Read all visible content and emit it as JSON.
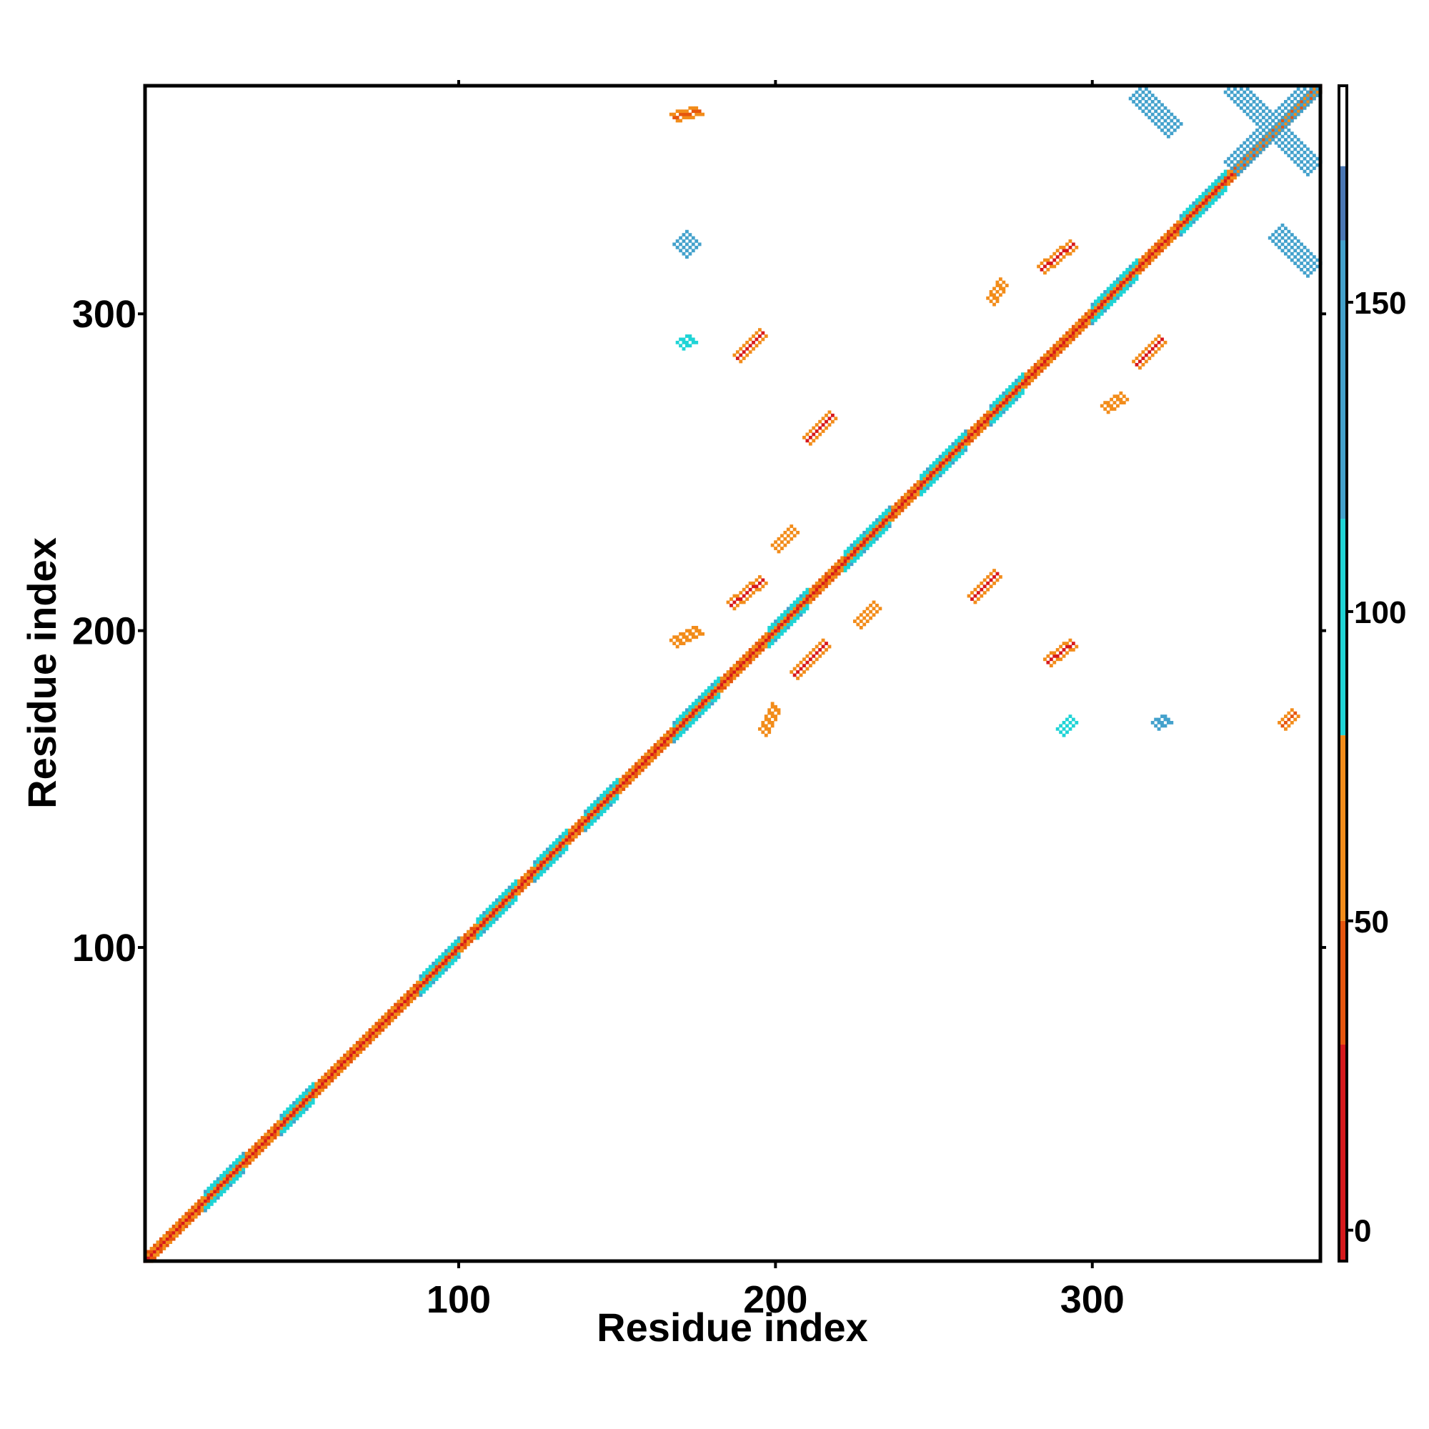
{
  "chart_data": {
    "type": "heatmap",
    "title": "",
    "xlabel": "Residue index",
    "ylabel": "Residue index",
    "xlim": [
      1,
      372
    ],
    "ylim": [
      1,
      372
    ],
    "x_ticks": [
      100,
      200,
      300
    ],
    "y_ticks": [
      100,
      200,
      300
    ],
    "x_tick_labels": [
      "100",
      "200",
      "300"
    ],
    "y_tick_labels": [
      "100",
      "200",
      "300"
    ],
    "grid": false,
    "legend": "colorbar-right",
    "colorbar": {
      "range": [
        -5,
        185
      ],
      "ticks": [
        0,
        50,
        100,
        150
      ],
      "tick_labels": [
        "0",
        "50",
        "100",
        "150"
      ],
      "bands": [
        {
          "from": -5,
          "to": 30,
          "color": "#d7191c"
        },
        {
          "from": 30,
          "to": 50,
          "color": "#e6550d"
        },
        {
          "from": 50,
          "to": 80,
          "color": "#f28c1a"
        },
        {
          "from": 80,
          "to": 115,
          "color": "#1fd4d6"
        },
        {
          "from": 115,
          "to": 160,
          "color": "#43a1cc"
        },
        {
          "from": 160,
          "to": 172,
          "color": "#4a77b4"
        },
        {
          "from": 172,
          "to": 185,
          "color": "#ffffff"
        }
      ]
    },
    "diagonal": {
      "from": 1,
      "to": 372
    },
    "helix_segments": [
      [
        20,
        32
      ],
      [
        44,
        54
      ],
      [
        88,
        100
      ],
      [
        106,
        118
      ],
      [
        124,
        134
      ],
      [
        140,
        150
      ],
      [
        168,
        182
      ],
      [
        198,
        210
      ],
      [
        222,
        236
      ],
      [
        246,
        260
      ],
      [
        268,
        278
      ],
      [
        300,
        314
      ],
      [
        328,
        342
      ]
    ],
    "off_diagonal_blocks": [
      {
        "x": [
          188,
          196
        ],
        "y": [
          286,
          294
        ],
        "value": 10
      },
      {
        "x": [
          210,
          218
        ],
        "y": [
          260,
          268
        ],
        "value": 10
      },
      {
        "x": [
          186,
          196
        ],
        "y": [
          208,
          216
        ],
        "value": 10
      },
      {
        "x": [
          206,
          216
        ],
        "y": [
          186,
          196
        ],
        "value": 10
      },
      {
        "x": [
          262,
          270
        ],
        "y": [
          210,
          218
        ],
        "value": 10
      },
      {
        "x": [
          286,
          294
        ],
        "y": [
          190,
          196
        ],
        "value": 10
      },
      {
        "x": [
          284,
          294
        ],
        "y": [
          314,
          322
        ],
        "value": 10
      },
      {
        "x": [
          314,
          322
        ],
        "y": [
          284,
          292
        ],
        "value": 10
      },
      {
        "x": [
          314,
          326
        ],
        "y": [
          358,
          370
        ],
        "value": 150
      },
      {
        "x": [
          344,
          370
        ],
        "y": [
          346,
          372
        ],
        "value": 150
      },
      {
        "x": [
          358,
          370
        ],
        "y": [
          314,
          326
        ],
        "value": 150
      },
      {
        "x": [
          170,
          174
        ],
        "y": [
          320,
          324
        ],
        "value": 150
      },
      {
        "x": [
          168,
          176
        ],
        "y": [
          362,
          364
        ],
        "value": 40
      },
      {
        "x": [
          360,
          364
        ],
        "y": [
          170,
          174
        ],
        "value": 40
      },
      {
        "x": [
          170,
          174
        ],
        "y": [
          290,
          292
        ],
        "value": 100
      },
      {
        "x": [
          268,
          272
        ],
        "y": [
          304,
          310
        ],
        "value": 60
      },
      {
        "x": [
          304,
          310
        ],
        "y": [
          270,
          274
        ],
        "value": 60
      },
      {
        "x": [
          320,
          324
        ],
        "y": [
          170,
          172
        ],
        "value": 130
      },
      {
        "x": [
          290,
          294
        ],
        "y": [
          168,
          172
        ],
        "value": 100
      },
      {
        "x": [
          196,
          200
        ],
        "y": [
          168,
          176
        ],
        "value": 70
      },
      {
        "x": [
          168,
          176
        ],
        "y": [
          196,
          200
        ],
        "value": 70
      },
      {
        "x": [
          200,
          206
        ],
        "y": [
          226,
          232
        ],
        "value": 60
      },
      {
        "x": [
          226,
          232
        ],
        "y": [
          202,
          208
        ],
        "value": 60
      }
    ]
  }
}
